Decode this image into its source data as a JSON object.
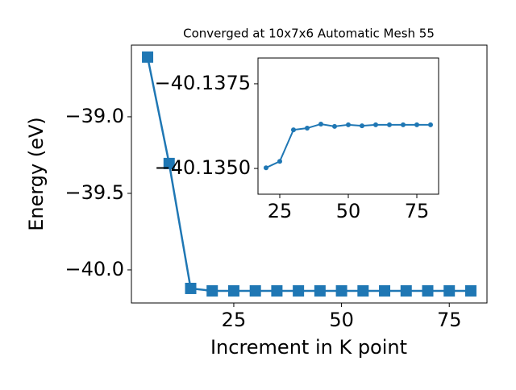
{
  "chart_data": [
    {
      "type": "line",
      "title": "Converged at 10x7x6 Automatic Mesh 55",
      "x_label": "Increment in K point",
      "y_label": "Energy (eV)",
      "x": [
        5,
        10,
        15,
        20,
        25,
        30,
        35,
        40,
        45,
        50,
        55,
        60,
        65,
        70,
        75,
        80
      ],
      "series": [
        {
          "color": "#1f77b4",
          "marker": "square",
          "values": [
            -38.61,
            -39.305,
            -40.121,
            -40.137,
            -40.137,
            -40.137,
            -40.137,
            -40.137,
            -40.137,
            -40.137,
            -40.137,
            -40.137,
            -40.137,
            -40.137,
            -40.137,
            -40.137
          ]
        }
      ],
      "xlim": [
        1.25,
        83.75
      ],
      "xticks": [
        25,
        50,
        75
      ],
      "ylim": [
        -40.216,
        -38.532
      ],
      "yticks": [
        {
          "value": -40.0,
          "label": "−40.0"
        },
        {
          "value": -39.5,
          "label": "−39.5"
        },
        {
          "value": -39.0,
          "label": "−39.0"
        }
      ]
    },
    {
      "type": "line",
      "x": [
        20,
        25,
        30,
        35,
        40,
        45,
        50,
        55,
        60,
        65,
        70,
        75,
        80
      ],
      "series": [
        {
          "color": "#1f77b4",
          "marker": "circle",
          "values": [
            -40.13502,
            -40.13521,
            -40.13614,
            -40.13619,
            -40.13631,
            -40.13624,
            -40.13629,
            -40.13626,
            -40.13629,
            -40.13629,
            -40.13629,
            -40.13629,
            -40.13629
          ]
        }
      ],
      "xlim": [
        17.06,
        82.94
      ],
      "xticks": [
        25,
        50,
        75
      ],
      "ylim": [
        -40.13424,
        -40.13826
      ],
      "yticks": [
        {
          "value": -40.135,
          "label": "−40.1350"
        },
        {
          "value": -40.1375,
          "label": "−40.1375"
        }
      ]
    }
  ]
}
